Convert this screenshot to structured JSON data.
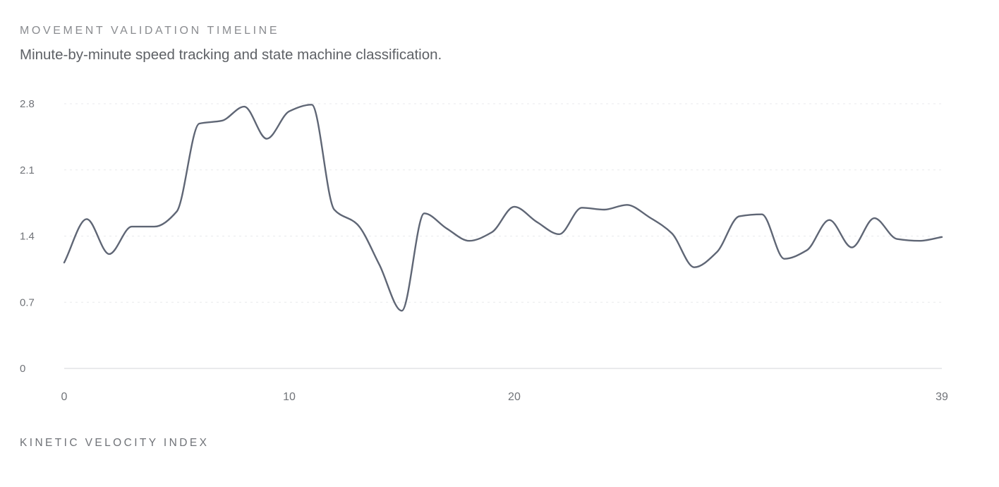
{
  "header": {
    "eyebrow": "MOVEMENT VALIDATION TIMELINE",
    "subtitle": "Minute-by-minute speed tracking and state machine classification."
  },
  "footer": {
    "label": "KINETIC VELOCITY INDEX"
  },
  "chart_data": {
    "type": "line",
    "title": "MOVEMENT VALIDATION TIMELINE",
    "subtitle": "Minute-by-minute speed tracking and state machine classification.",
    "xlabel": "",
    "ylabel": "",
    "xlim": [
      0,
      39
    ],
    "ylim": [
      0,
      2.8
    ],
    "x_ticks": [
      0,
      10,
      20,
      39
    ],
    "y_ticks": [
      0,
      0.7,
      1.4,
      2.1,
      2.8
    ],
    "y_tick_labels": [
      "0",
      "0.7",
      "1.4",
      "2.1",
      "2.8"
    ],
    "grid": "horizontal dotted",
    "line_color": "#5f6675",
    "series": [
      {
        "x": [
          0,
          1,
          2,
          3,
          4,
          5,
          6,
          7,
          8,
          9,
          10,
          11,
          12,
          13,
          14,
          15,
          16,
          17,
          18,
          19,
          20,
          21,
          22,
          23,
          24,
          25,
          26,
          27,
          28,
          29,
          30,
          31,
          32,
          33,
          34,
          35,
          36,
          37,
          38,
          39
        ],
        "values": [
          1.12,
          1.58,
          1.21,
          1.5,
          1.5,
          1.66,
          2.59,
          2.62,
          2.77,
          2.43,
          2.72,
          2.79,
          1.68,
          1.53,
          1.1,
          0.61,
          1.64,
          1.48,
          1.35,
          1.44,
          1.71,
          1.55,
          1.42,
          1.7,
          1.68,
          1.73,
          1.6,
          1.43,
          1.07,
          1.23,
          1.61,
          1.63,
          1.16,
          1.25,
          1.57,
          1.28,
          1.59,
          1.37,
          1.35,
          1.39
        ]
      }
    ]
  }
}
